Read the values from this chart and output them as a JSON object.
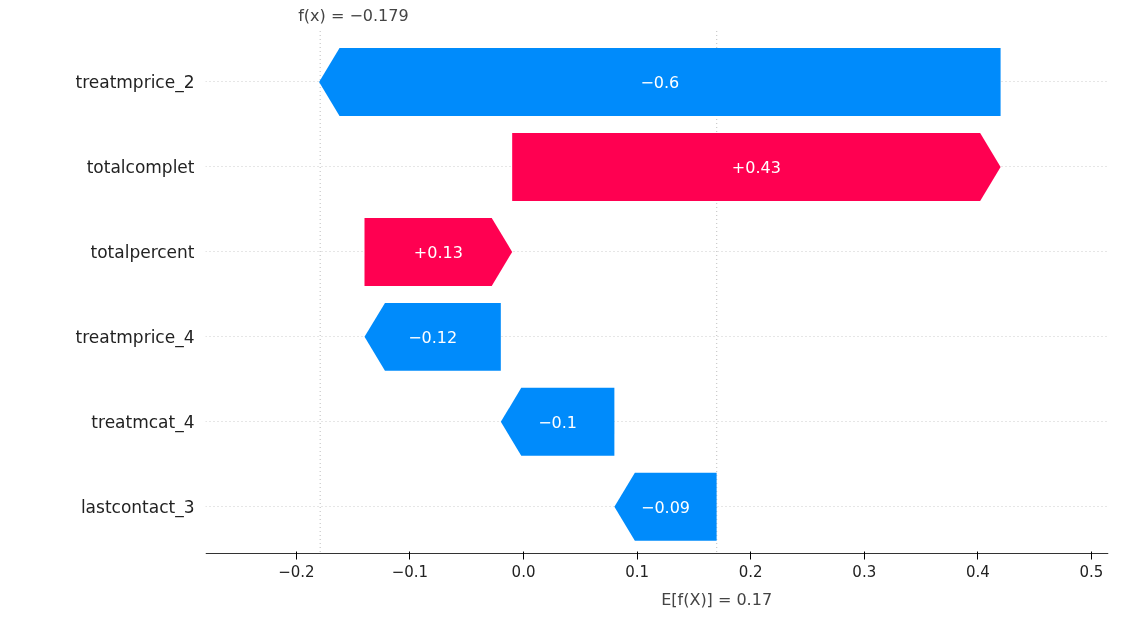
{
  "chart_data": {
    "type": "bar",
    "orientation": "horizontal",
    "categories": [
      "treatmprice_2",
      "totalcomplet",
      "totalpercent",
      "treatmprice_4",
      "treatmcat_4",
      "lastcontact_3"
    ],
    "base": [
      0.42,
      -0.01,
      -0.14,
      -0.02,
      0.08,
      0.17
    ],
    "values": [
      -0.6,
      0.43,
      0.13,
      -0.12,
      -0.1,
      -0.09
    ],
    "colors": [
      "#008bfb",
      "#ff0051",
      "#ff0051",
      "#008bfb",
      "#008bfb",
      "#008bfb"
    ],
    "value_labels": [
      "−0.6",
      "+0.43",
      "+0.13",
      "−0.12",
      "−0.1",
      "−0.09"
    ],
    "xlim": [
      -0.28,
      0.515
    ],
    "xticks": [
      {
        "value": -0.2,
        "label": "−0.2"
      },
      {
        "value": -0.1,
        "label": "−0.1"
      },
      {
        "value": 0.0,
        "label": "0.0"
      },
      0.1,
      0.2,
      0.3,
      0.4,
      0.5
    ],
    "grid": "y",
    "ref_lines": [
      {
        "axis": "x",
        "value": -0.179,
        "label": "f(x) = −0.179",
        "color": "#cccccc",
        "line_style": "dotted"
      },
      {
        "axis": "x",
        "value": 0.17,
        "label": "E[f(X)] = 0.17",
        "color": "#cccccc",
        "line_style": "dotted"
      }
    ]
  }
}
